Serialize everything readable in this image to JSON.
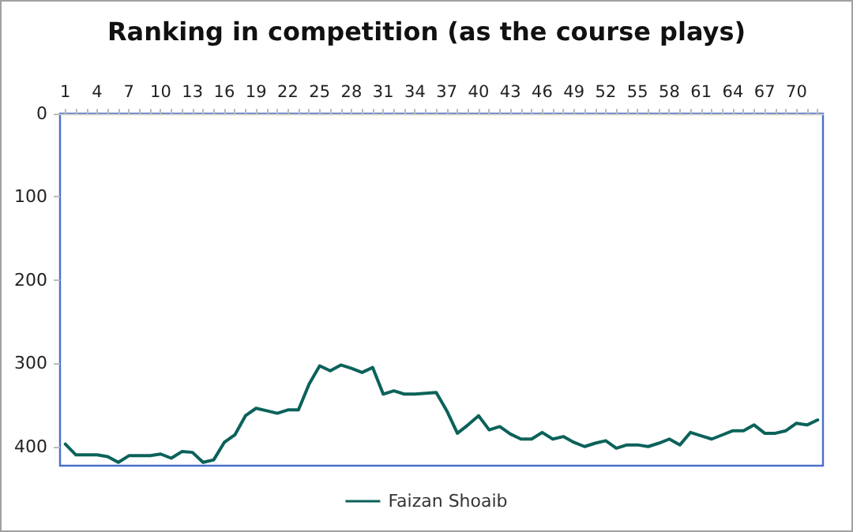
{
  "chart_data": {
    "type": "line",
    "title": "Ranking in competition (as the course plays)",
    "categories": [
      "1",
      null,
      null,
      "4",
      null,
      null,
      "7",
      null,
      null,
      "10",
      null,
      null,
      "13",
      null,
      null,
      "16",
      null,
      null,
      "19",
      null,
      null,
      "22",
      null,
      null,
      "25",
      null,
      null,
      "28",
      null,
      null,
      "31",
      null,
      null,
      "34",
      null,
      null,
      "37",
      null,
      null,
      "40",
      null,
      null,
      "43",
      null,
      null,
      "46",
      null,
      null,
      "49",
      null,
      null,
      "52",
      null,
      null,
      "55",
      null,
      null,
      "58",
      null,
      null,
      "61",
      null,
      null,
      "64",
      null,
      null,
      "67",
      null,
      null,
      "70",
      null,
      null
    ],
    "series": [
      {
        "name": "Faizan Shoaib",
        "color": "#0b625a",
        "values": [
          397,
          410,
          410,
          410,
          412,
          419,
          411,
          411,
          411,
          409,
          414,
          406,
          407,
          419,
          416,
          395,
          386,
          363,
          354,
          357,
          360,
          356,
          356,
          325,
          303,
          309,
          302,
          306,
          311,
          305,
          337,
          333,
          337,
          337,
          336,
          335,
          357,
          384,
          374,
          363,
          380,
          376,
          385,
          391,
          391,
          383,
          391,
          388,
          395,
          400,
          396,
          393,
          402,
          398,
          398,
          400,
          396,
          391,
          398,
          383,
          387,
          391,
          386,
          381,
          381,
          374,
          384,
          384,
          381,
          372,
          374,
          368
        ]
      }
    ],
    "ylim": [
      423,
      0
    ],
    "yticks": [
      0,
      100,
      200,
      300,
      400
    ],
    "grid": false,
    "legend": "bottom",
    "marker": "none",
    "line_style": "solid"
  }
}
